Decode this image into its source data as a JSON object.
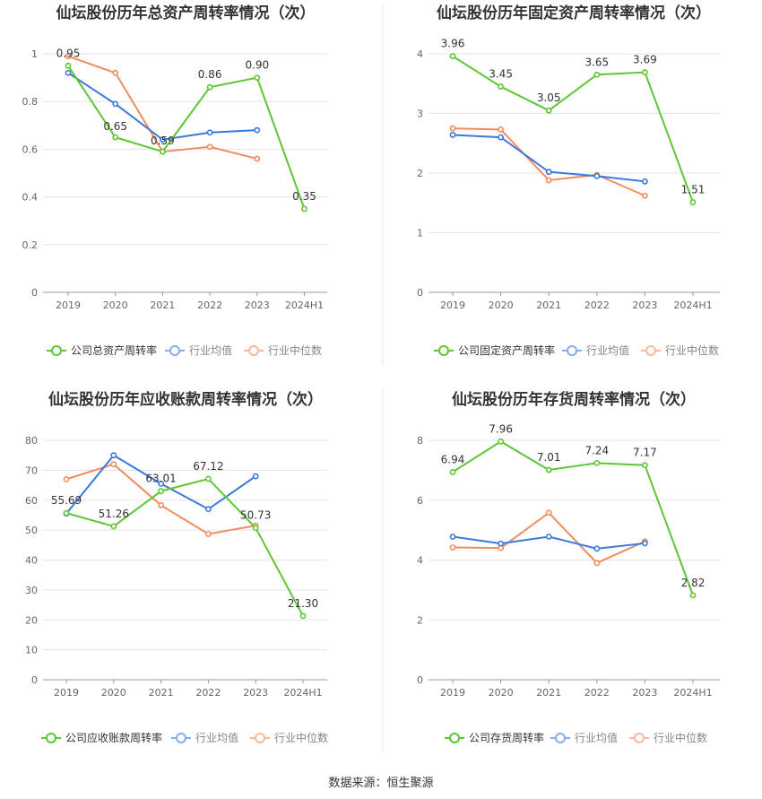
{
  "colors": {
    "company": "#5ec634",
    "avg": "#3b78dc",
    "median": "#f28c5e",
    "grid": "#e3e3ea",
    "axis": "#999999"
  },
  "legend": {
    "avg": "行业均值",
    "median": "行业中位数"
  },
  "source": "数据来源：恒生聚源",
  "chart_data": [
    {
      "type": "line",
      "title": "仙坛股份历年总资产周转率情况（次）",
      "categories": [
        "2019",
        "2020",
        "2021",
        "2022",
        "2023",
        "2024H1"
      ],
      "ylim": [
        0,
        1
      ],
      "yticks": [
        0,
        0.2,
        0.4,
        0.6,
        0.8,
        1
      ],
      "ytick_labels": [
        "0",
        "0.2",
        "0.4",
        "0.6",
        "0.8",
        "1"
      ],
      "series": [
        {
          "key": "company",
          "name": "公司总资产周转率",
          "values": [
            0.95,
            0.65,
            0.59,
            0.86,
            0.9,
            0.35
          ],
          "labels": [
            "0.95",
            "0.65",
            "0.59",
            "0.86",
            "0.90",
            "0.35"
          ]
        },
        {
          "key": "avg",
          "name": "行业均值",
          "values": [
            0.92,
            0.79,
            0.64,
            0.67,
            0.68,
            null
          ]
        },
        {
          "key": "median",
          "name": "行业中位数",
          "values": [
            0.99,
            0.92,
            0.59,
            0.61,
            0.56,
            null
          ]
        }
      ]
    },
    {
      "type": "line",
      "title": "仙坛股份历年固定资产周转率情况（次）",
      "categories": [
        "2019",
        "2020",
        "2021",
        "2022",
        "2023",
        "2024H1"
      ],
      "ylim": [
        0,
        4
      ],
      "yticks": [
        0,
        1,
        2,
        3,
        4
      ],
      "ytick_labels": [
        "0",
        "1",
        "2",
        "3",
        "4"
      ],
      "series": [
        {
          "key": "company",
          "name": "公司固定资产周转率",
          "values": [
            3.96,
            3.45,
            3.05,
            3.65,
            3.69,
            1.51
          ],
          "labels": [
            "3.96",
            "3.45",
            "3.05",
            "3.65",
            "3.69",
            "1.51"
          ]
        },
        {
          "key": "avg",
          "name": "行业均值",
          "values": [
            2.64,
            2.6,
            2.02,
            1.95,
            1.86,
            null
          ]
        },
        {
          "key": "median",
          "name": "行业中位数",
          "values": [
            2.75,
            2.73,
            1.88,
            1.97,
            1.62,
            null
          ]
        }
      ]
    },
    {
      "type": "line",
      "title": "仙坛股份历年应收账款周转率情况（次）",
      "categories": [
        "2019",
        "2020",
        "2021",
        "2022",
        "2023",
        "2024H1"
      ],
      "ylim": [
        0,
        80
      ],
      "yticks": [
        0,
        10,
        20,
        30,
        40,
        50,
        60,
        70,
        80
      ],
      "ytick_labels": [
        "0",
        "10",
        "20",
        "30",
        "40",
        "50",
        "60",
        "70",
        "80"
      ],
      "series": [
        {
          "key": "company",
          "name": "公司应收账款周转率",
          "values": [
            55.69,
            51.26,
            63.01,
            67.12,
            50.73,
            21.3
          ],
          "labels": [
            "55.69",
            "51.26",
            "63.01",
            "67.12",
            "50.73",
            "21.30"
          ]
        },
        {
          "key": "avg",
          "name": "行业均值",
          "values": [
            55.5,
            75.0,
            65.5,
            57.0,
            68.0,
            null
          ]
        },
        {
          "key": "median",
          "name": "行业中位数",
          "values": [
            67.0,
            72.0,
            58.3,
            48.7,
            51.5,
            null
          ]
        }
      ]
    },
    {
      "type": "line",
      "title": "仙坛股份历年存货周转率情况（次）",
      "categories": [
        "2019",
        "2020",
        "2021",
        "2022",
        "2023",
        "2024H1"
      ],
      "ylim": [
        0,
        8
      ],
      "yticks": [
        0,
        2,
        4,
        6,
        8
      ],
      "ytick_labels": [
        "0",
        "2",
        "4",
        "6",
        "8"
      ],
      "series": [
        {
          "key": "company",
          "name": "公司存货周转率",
          "values": [
            6.94,
            7.96,
            7.01,
            7.24,
            7.17,
            2.82
          ],
          "labels": [
            "6.94",
            "7.96",
            "7.01",
            "7.24",
            "7.17",
            "2.82"
          ]
        },
        {
          "key": "avg",
          "name": "行业均值",
          "values": [
            4.78,
            4.55,
            4.78,
            4.38,
            4.56,
            null
          ]
        },
        {
          "key": "median",
          "name": "行业中位数",
          "values": [
            4.42,
            4.4,
            5.58,
            3.9,
            4.62,
            null
          ]
        }
      ]
    }
  ]
}
